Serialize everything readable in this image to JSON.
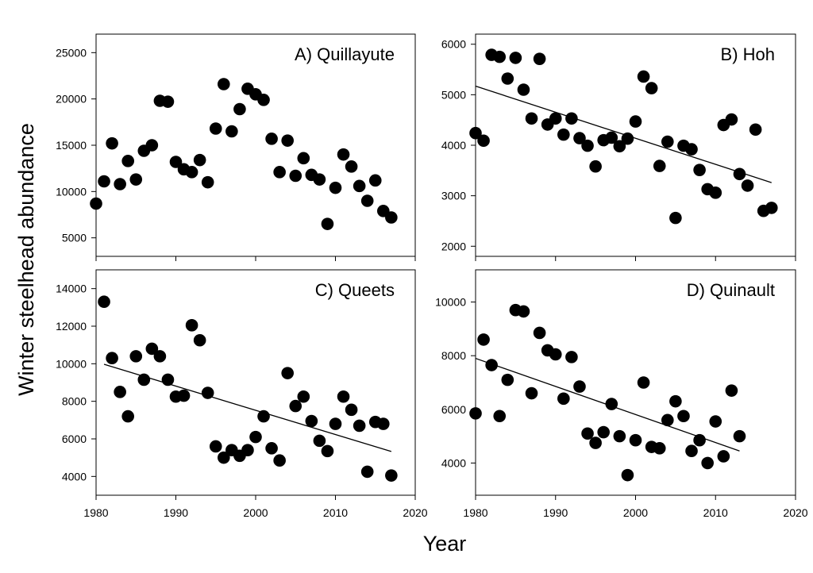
{
  "figure": {
    "ylabel": "Winter steelhead abundance",
    "xlabel": "Year"
  },
  "chart_data": [
    {
      "type": "scatter",
      "title": "A) Quillayute",
      "xlim": [
        1980,
        2020
      ],
      "ylim": [
        3000,
        27000
      ],
      "xticks": [],
      "yticks": [
        5000,
        10000,
        15000,
        20000,
        25000
      ],
      "trendline": null,
      "x": [
        1980,
        1981,
        1982,
        1983,
        1984,
        1985,
        1986,
        1987,
        1988,
        1989,
        1990,
        1991,
        1992,
        1993,
        1994,
        1995,
        1996,
        1997,
        1998,
        1999,
        2000,
        2001,
        2002,
        2003,
        2004,
        2005,
        2006,
        2007,
        2008,
        2009,
        2010,
        2011,
        2012,
        2013,
        2014,
        2015,
        2016,
        2017
      ],
      "y": [
        8700,
        11100,
        15200,
        10800,
        13300,
        11300,
        14400,
        15000,
        19800,
        19700,
        13200,
        12400,
        12100,
        13400,
        11000,
        16800,
        21600,
        16500,
        18900,
        21100,
        20500,
        19900,
        15700,
        12100,
        15500,
        11700,
        13600,
        11800,
        11300,
        6500,
        10400,
        14000,
        12700,
        10600,
        9000,
        11200,
        7900,
        7200
      ]
    },
    {
      "type": "scatter",
      "title": "B) Hoh",
      "xlim": [
        1980,
        2020
      ],
      "ylim": [
        1800,
        6200
      ],
      "xticks": [],
      "yticks": [
        2000,
        3000,
        4000,
        5000,
        6000
      ],
      "trendline": {
        "x": [
          1980,
          2017
        ],
        "y": [
          5170,
          3260
        ]
      },
      "x": [
        1980,
        1981,
        1982,
        1983,
        1984,
        1985,
        1986,
        1987,
        1988,
        1989,
        1990,
        1991,
        1992,
        1993,
        1994,
        1995,
        1996,
        1997,
        1998,
        1999,
        2000,
        2001,
        2002,
        2003,
        2004,
        2005,
        2006,
        2007,
        2008,
        2009,
        2010,
        2011,
        2012,
        2013,
        2014,
        2015,
        2016,
        2017
      ],
      "y": [
        4240,
        4090,
        5790,
        5750,
        5320,
        5730,
        5100,
        4530,
        5710,
        4410,
        4530,
        4210,
        4530,
        4140,
        3990,
        3580,
        4100,
        4150,
        3980,
        4130,
        4470,
        5360,
        5130,
        3590,
        4070,
        2560,
        3990,
        3920,
        3510,
        3130,
        3060,
        4400,
        4510,
        3430,
        3200,
        4310,
        2700,
        2760
      ]
    },
    {
      "type": "scatter",
      "title": "C) Queets",
      "xlim": [
        1980,
        2020
      ],
      "ylim": [
        3000,
        15000
      ],
      "xticks": [
        1980,
        1990,
        2000,
        2010,
        2020
      ],
      "yticks": [
        4000,
        6000,
        8000,
        10000,
        12000,
        14000
      ],
      "trendline": {
        "x": [
          1981,
          2017
        ],
        "y": [
          9970,
          5330
        ]
      },
      "x": [
        1981,
        1982,
        1983,
        1984,
        1985,
        1986,
        1987,
        1988,
        1989,
        1990,
        1991,
        1992,
        1993,
        1994,
        1995,
        1996,
        1997,
        1998,
        1999,
        2000,
        2001,
        2002,
        2003,
        2004,
        2005,
        2006,
        2007,
        2008,
        2009,
        2010,
        2011,
        2012,
        2013,
        2014,
        2015,
        2016,
        2017
      ],
      "y": [
        13300,
        10300,
        8500,
        7200,
        10400,
        9150,
        10800,
        10400,
        9150,
        8250,
        8300,
        12050,
        11250,
        8450,
        5600,
        5000,
        5400,
        5100,
        5400,
        6100,
        7200,
        5500,
        4850,
        9500,
        7750,
        8250,
        6950,
        5900,
        5350,
        6800,
        8250,
        7550,
        6700,
        4250,
        6900,
        6800,
        4050
      ]
    },
    {
      "type": "scatter",
      "title": "D) Quinault",
      "xlim": [
        1980,
        2020
      ],
      "ylim": [
        2800,
        11200
      ],
      "xticks": [
        1980,
        1990,
        2000,
        2010,
        2020
      ],
      "yticks": [
        4000,
        6000,
        8000,
        10000
      ],
      "trendline": {
        "x": [
          1980,
          2013
        ],
        "y": [
          7900,
          4450
        ]
      },
      "x": [
        1980,
        1981,
        1982,
        1983,
        1984,
        1985,
        1986,
        1987,
        1988,
        1989,
        1990,
        1991,
        1992,
        1993,
        1994,
        1995,
        1996,
        1997,
        1998,
        1999,
        2000,
        2001,
        2002,
        2003,
        2004,
        2005,
        2006,
        2007,
        2008,
        2009,
        2010,
        2011,
        2012,
        2013
      ],
      "y": [
        5850,
        8600,
        7650,
        5750,
        7100,
        9700,
        9650,
        6600,
        8850,
        8200,
        8050,
        6400,
        7950,
        6850,
        5100,
        4750,
        5150,
        6200,
        5000,
        3550,
        4850,
        7000,
        4600,
        4550,
        5600,
        6300,
        5750,
        4450,
        4850,
        4000,
        5550,
        4250,
        6700,
        5000
      ]
    }
  ]
}
